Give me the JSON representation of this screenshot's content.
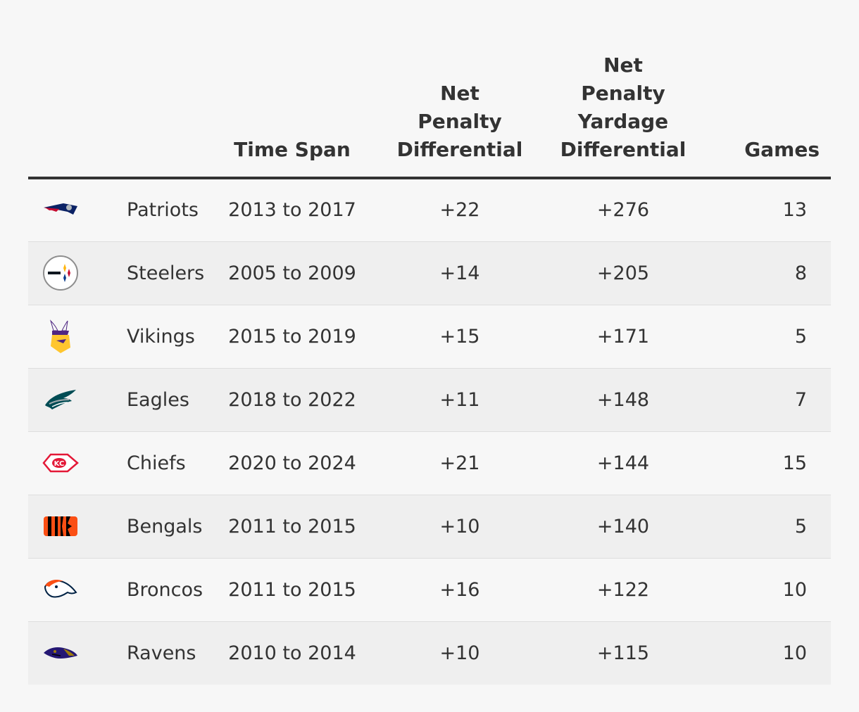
{
  "headers": {
    "logo": "",
    "team": "",
    "time_span": "Time Span",
    "net_penalty_differential": [
      "Net",
      "Penalty",
      "Differential"
    ],
    "net_penalty_yardage_differential": [
      "Net",
      "Penalty",
      "Yardage",
      "Differential"
    ],
    "games": "Games"
  },
  "rows": [
    {
      "team": "Patriots",
      "logo_icon": "patriots-logo-icon",
      "time_span": "2013 to 2017",
      "npd": "+22",
      "npyd": "+276",
      "games": "13"
    },
    {
      "team": "Steelers",
      "logo_icon": "steelers-logo-icon",
      "time_span": "2005 to 2009",
      "npd": "+14",
      "npyd": "+205",
      "games": "8"
    },
    {
      "team": "Vikings",
      "logo_icon": "vikings-logo-icon",
      "time_span": "2015 to 2019",
      "npd": "+15",
      "npyd": "+171",
      "games": "5"
    },
    {
      "team": "Eagles",
      "logo_icon": "eagles-logo-icon",
      "time_span": "2018 to 2022",
      "npd": "+11",
      "npyd": "+148",
      "games": "7"
    },
    {
      "team": "Chiefs",
      "logo_icon": "chiefs-logo-icon",
      "time_span": "2020 to 2024",
      "npd": "+21",
      "npyd": "+144",
      "games": "15"
    },
    {
      "team": "Bengals",
      "logo_icon": "bengals-logo-icon",
      "time_span": "2011 to 2015",
      "npd": "+10",
      "npyd": "+140",
      "games": "5"
    },
    {
      "team": "Broncos",
      "logo_icon": "broncos-logo-icon",
      "time_span": "2011 to 2015",
      "npd": "+16",
      "npyd": "+122",
      "games": "10"
    },
    {
      "team": "Ravens",
      "logo_icon": "ravens-logo-icon",
      "time_span": "2010 to 2014",
      "npd": "+10",
      "npyd": "+115",
      "games": "10"
    }
  ],
  "colors": {
    "background": "#f7f7f7",
    "shaded_row": "#efefef",
    "text": "#333333",
    "rule": "#333333"
  }
}
